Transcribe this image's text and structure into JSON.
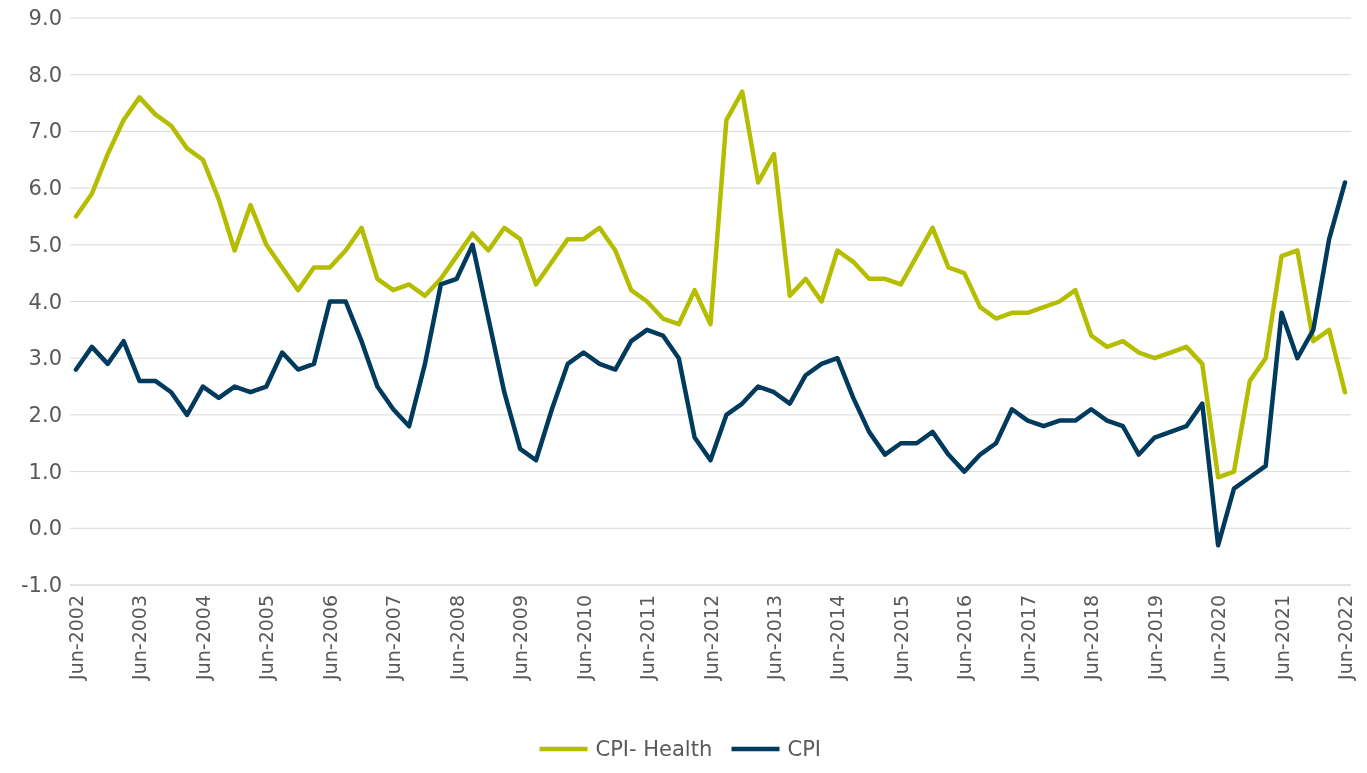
{
  "chart_data": {
    "type": "line",
    "categories": [
      "Jun-2002",
      null,
      null,
      null,
      "Jun-2003",
      null,
      null,
      null,
      "Jun-2004",
      null,
      null,
      null,
      "Jun-2005",
      null,
      null,
      null,
      "Jun-2006",
      null,
      null,
      null,
      "Jun-2007",
      null,
      null,
      null,
      "Jun-2008",
      null,
      null,
      null,
      "Jun-2009",
      null,
      null,
      null,
      "Jun-2010",
      null,
      null,
      null,
      "Jun-2011",
      null,
      null,
      null,
      "Jun-2012",
      null,
      null,
      null,
      "Jun-2013",
      null,
      null,
      null,
      "Jun-2014",
      null,
      null,
      null,
      "Jun-2015",
      null,
      null,
      null,
      "Jun-2016",
      null,
      null,
      null,
      "Jun-2017",
      null,
      null,
      null,
      "Jun-2018",
      null,
      null,
      null,
      "Jun-2019",
      null,
      null,
      null,
      "Jun-2020",
      null,
      null,
      null,
      "Jun-2021",
      null,
      null,
      null,
      "Jun-2022"
    ],
    "series": [
      {
        "name": "CPI- Health",
        "color": "#b5bd00",
        "values": [
          5.5,
          5.9,
          6.6,
          7.2,
          7.6,
          7.3,
          7.1,
          6.7,
          6.5,
          5.8,
          4.9,
          5.7,
          5.0,
          4.6,
          4.2,
          4.6,
          4.6,
          4.9,
          5.3,
          4.4,
          4.2,
          4.3,
          4.1,
          4.4,
          4.8,
          5.2,
          4.9,
          5.3,
          5.1,
          4.3,
          4.7,
          5.1,
          5.1,
          5.3,
          4.9,
          4.2,
          4.0,
          3.7,
          3.6,
          4.2,
          3.6,
          7.2,
          7.7,
          6.1,
          6.6,
          4.1,
          4.4,
          4.0,
          4.9,
          4.7,
          4.4,
          4.4,
          4.3,
          4.8,
          5.3,
          4.6,
          4.5,
          3.9,
          3.7,
          3.8,
          3.8,
          3.9,
          4.0,
          4.2,
          3.4,
          3.2,
          3.3,
          3.1,
          3.0,
          3.1,
          3.2,
          2.9,
          0.9,
          1.0,
          2.6,
          3.0,
          4.8,
          4.9,
          3.3,
          3.5,
          2.4
        ]
      },
      {
        "name": "CPI",
        "color": "#003a5d",
        "values": [
          2.8,
          3.2,
          2.9,
          3.3,
          2.6,
          2.6,
          2.4,
          2.0,
          2.5,
          2.3,
          2.5,
          2.4,
          2.5,
          3.1,
          2.8,
          2.9,
          4.0,
          4.0,
          3.3,
          2.5,
          2.1,
          1.8,
          2.9,
          4.3,
          4.4,
          5.0,
          3.7,
          2.4,
          1.4,
          1.2,
          2.1,
          2.9,
          3.1,
          2.9,
          2.8,
          3.3,
          3.5,
          3.4,
          3.0,
          1.6,
          1.2,
          2.0,
          2.2,
          2.5,
          2.4,
          2.2,
          2.7,
          2.9,
          3.0,
          2.3,
          1.7,
          1.3,
          1.5,
          1.5,
          1.7,
          1.3,
          1.0,
          1.3,
          1.5,
          2.1,
          1.9,
          1.8,
          1.9,
          1.9,
          2.1,
          1.9,
          1.8,
          1.3,
          1.6,
          1.7,
          1.8,
          2.2,
          -0.3,
          0.7,
          0.9,
          1.1,
          3.8,
          3.0,
          3.5,
          5.1,
          6.1
        ]
      }
    ],
    "ylim": [
      -1,
      9
    ],
    "yticks": [
      {
        "value": -1,
        "label": "-1.0"
      },
      {
        "value": 0,
        "label": "0.0"
      },
      {
        "value": 1,
        "label": "1.0"
      },
      {
        "value": 2,
        "label": "2.0"
      },
      {
        "value": 3,
        "label": "3.0"
      },
      {
        "value": 4,
        "label": "4.0"
      },
      {
        "value": 5,
        "label": "5.0"
      },
      {
        "value": 6,
        "label": "6.0"
      },
      {
        "value": 7,
        "label": "7.0"
      },
      {
        "value": 8,
        "label": "8.0"
      },
      {
        "value": 9,
        "label": "9.0"
      }
    ],
    "grid": "y",
    "legend": "bottom",
    "line_style": "solid",
    "marker": "none"
  }
}
